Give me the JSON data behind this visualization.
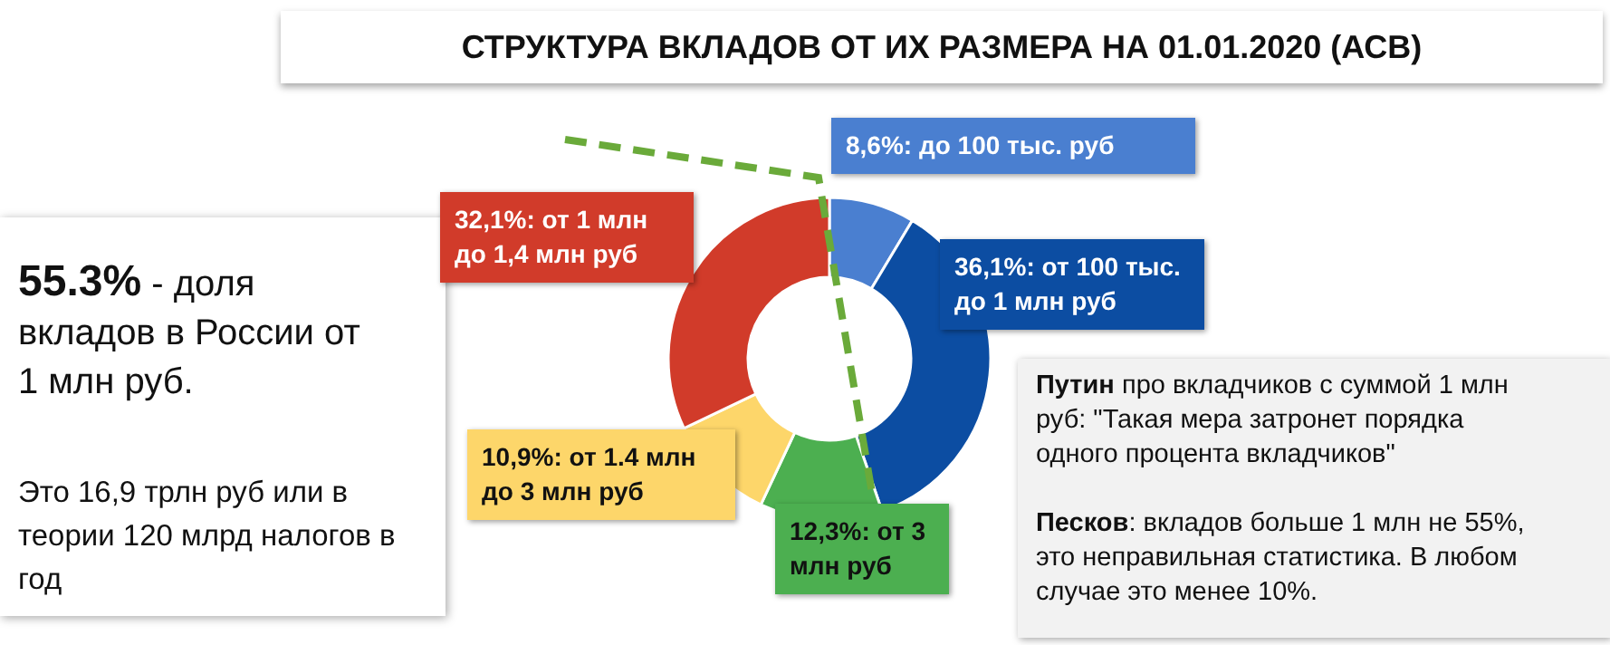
{
  "chart_data": {
    "type": "donut",
    "title": "СТРУКТУРА ВКЛАДОВ ОТ ИХ РАЗМЕРА НА 01.01.2020 (АСВ)",
    "categories": [
      "до 100 тыс. руб",
      "от 100 тыс. до 1 млн руб",
      "от 3 млн руб",
      "от 1.4 млн до 3 млн руб",
      "от 1 млн до 1,4 млн руб"
    ],
    "values": [
      8.6,
      36.1,
      12.3,
      10.9,
      32.1
    ],
    "value_labels": [
      "8,6%",
      "36,1%",
      "12,3%",
      "10,9%",
      "32,1%"
    ],
    "colors": [
      "#4a7fd0",
      "#0c4da2",
      "#4caf50",
      "#fdd66a",
      "#d13b2a"
    ],
    "annotations": [
      "55.3% - доля вкладов в России от 1 млн руб.",
      "Это 16,9 трлн руб или в теории 120 млрд налогов в год",
      "Путин про вкладчиков с суммой 1 млн руб: \"Такая мера затронет порядка одного процента вкладчиков\"",
      "Песков: вкладов больше 1 млн не 55%, это неправильная статистика. В любом случае это менее 10%."
    ],
    "data_labels": true
  }
}
